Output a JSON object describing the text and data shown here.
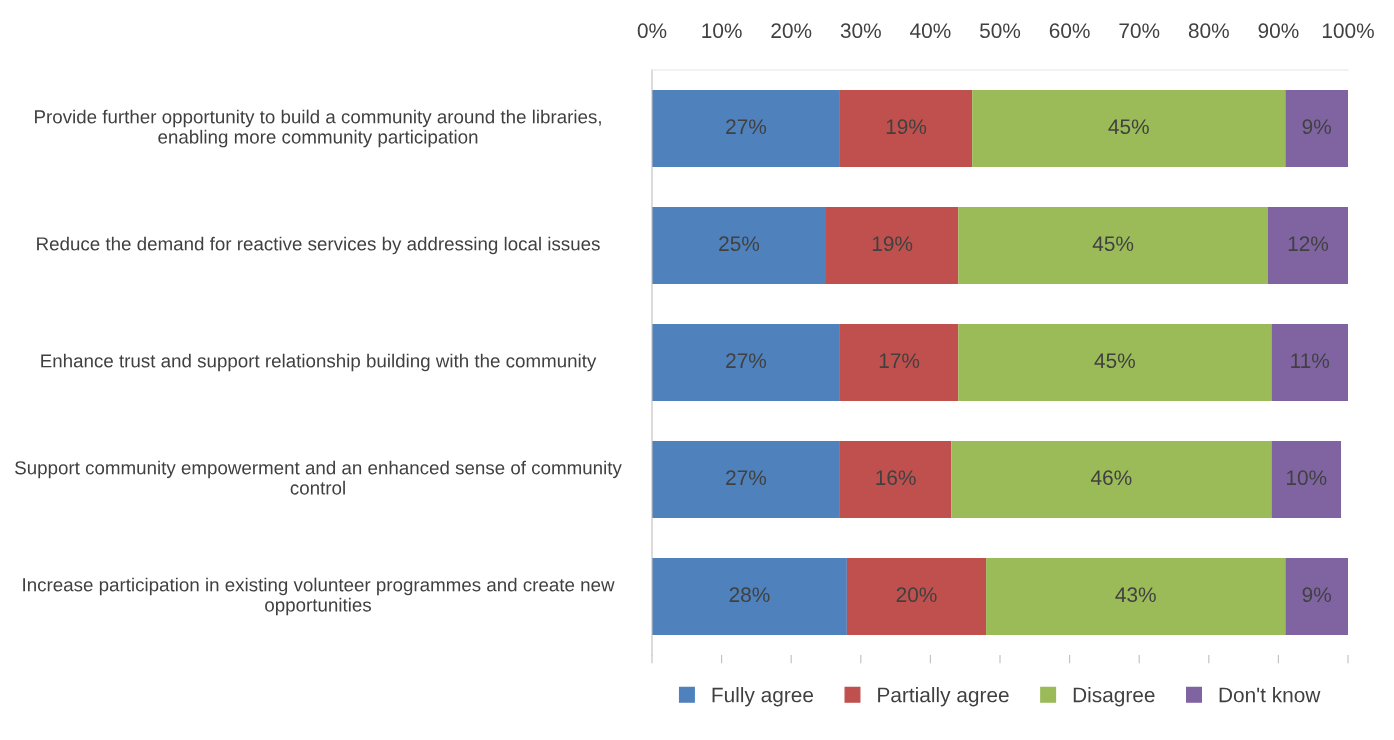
{
  "chart_data": {
    "type": "bar",
    "orientation": "horizontal",
    "stacked": true,
    "categories": [
      "Provide further opportunity to build a community around the libraries, enabling more community participation",
      "Reduce the demand for reactive services by addressing local issues",
      "Enhance trust and support relationship building with the community",
      "Support community empowerment and an enhanced sense of community control",
      "Increase participation in existing volunteer programmes and create new opportunities"
    ],
    "series": [
      {
        "name": "Fully agree",
        "color": "#4f81bd",
        "values": [
          27,
          25,
          27,
          27,
          28
        ],
        "value_labels": [
          "27%",
          "25%",
          "27%",
          "27%",
          "28%"
        ]
      },
      {
        "name": "Partially agree",
        "color": "#c0504d",
        "values": [
          19,
          19,
          17,
          16,
          20
        ],
        "value_labels": [
          "19%",
          "19%",
          "17%",
          "16%",
          "20%"
        ]
      },
      {
        "name": "Disagree",
        "color": "#9bbb59",
        "values": [
          45,
          44.5,
          45,
          46,
          43
        ],
        "value_labels": [
          "45%",
          "45%",
          "45%",
          "46%",
          "43%"
        ]
      },
      {
        "name": "Don't know",
        "color": "#8064a2",
        "values": [
          9,
          11.5,
          11,
          10,
          9
        ],
        "value_labels": [
          "9%",
          "12%",
          "11%",
          "10%",
          "9%"
        ]
      }
    ],
    "xlim": [
      0,
      100
    ],
    "xticks": [
      {
        "value": 0,
        "label": "0%"
      },
      {
        "value": 10,
        "label": "10%"
      },
      {
        "value": 20,
        "label": "20%"
      },
      {
        "value": 30,
        "label": "30%"
      },
      {
        "value": 40,
        "label": "40%"
      },
      {
        "value": 50,
        "label": "50%"
      },
      {
        "value": 60,
        "label": "60%"
      },
      {
        "value": 70,
        "label": "70%"
      },
      {
        "value": 80,
        "label": "80%"
      },
      {
        "value": 90,
        "label": "90%"
      },
      {
        "value": 100,
        "label": "100%"
      }
    ],
    "grid": false,
    "legend": "bottom"
  }
}
